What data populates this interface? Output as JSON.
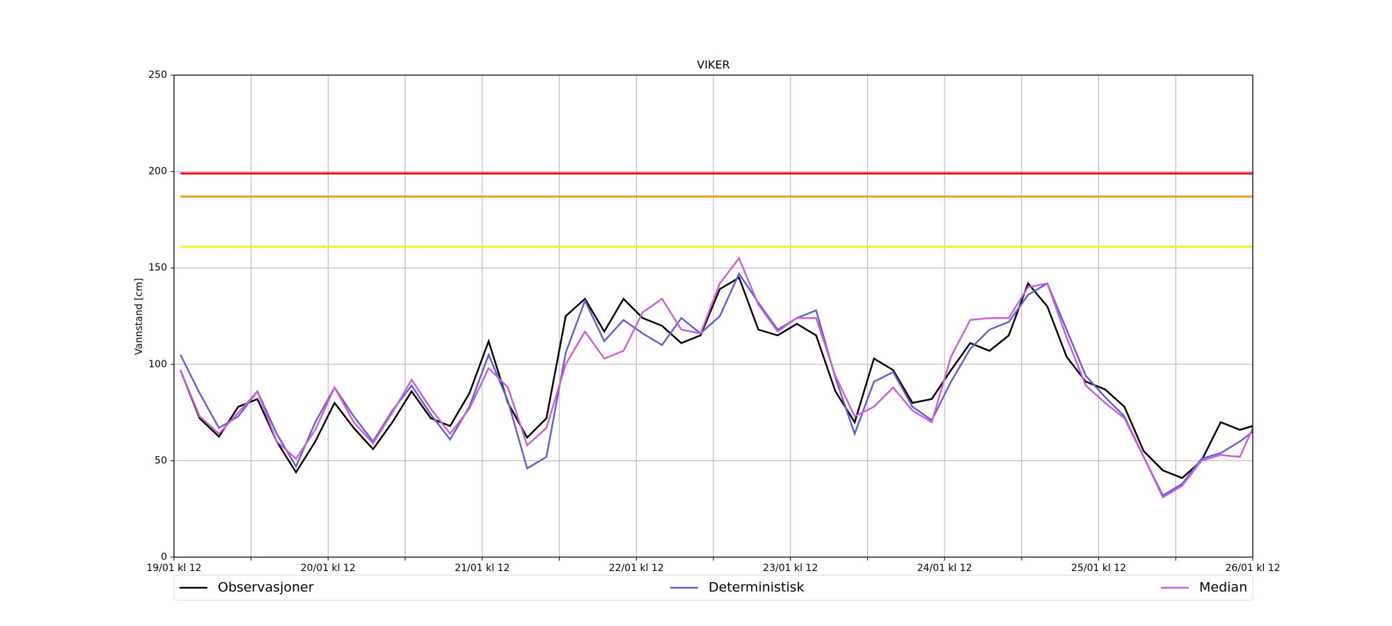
{
  "chart_data": {
    "type": "line",
    "title": "VIKER",
    "y_label": "Vannstand [cm]",
    "x": [
      1,
      4,
      7,
      10,
      13,
      16,
      19,
      22,
      25,
      28,
      31,
      34,
      37,
      40,
      43,
      46,
      49,
      52,
      55,
      58,
      61,
      64,
      67,
      70,
      73,
      76,
      79,
      82,
      85,
      88,
      91,
      94,
      97,
      100,
      103,
      106,
      109,
      112,
      115,
      118,
      121,
      124,
      127,
      130,
      133,
      136,
      139,
      142,
      145,
      148,
      151,
      154,
      157,
      160,
      163,
      166,
      168
    ],
    "series": [
      {
        "name": "Observasjoner",
        "color": "#000000",
        "values": [
          97,
          72,
          62.5,
          78,
          82,
          60,
          44,
          60,
          80,
          67,
          56,
          70,
          86,
          72,
          68,
          85,
          112,
          80,
          62,
          72,
          125,
          134,
          117,
          134,
          124,
          120,
          111,
          115,
          139,
          145,
          118,
          115,
          121,
          115,
          86,
          70,
          103,
          97,
          80,
          82,
          97,
          111,
          107,
          115,
          142,
          130,
          104,
          91,
          87,
          78,
          55,
          45,
          41,
          50,
          70,
          66,
          68
        ]
      },
      {
        "name": "Deterministisk",
        "color": "#6060d6",
        "values": [
          105,
          85,
          67,
          73,
          86,
          64,
          47,
          70,
          88,
          73,
          60,
          76,
          89,
          74,
          61,
          78,
          105,
          81,
          46,
          52,
          106,
          133,
          112,
          123,
          116,
          110,
          124,
          116,
          125,
          147,
          132,
          118,
          124,
          128,
          93,
          64,
          91,
          96,
          78,
          71,
          91,
          108,
          118,
          122,
          136,
          142,
          118,
          94,
          83,
          73,
          52,
          32,
          38,
          51,
          54,
          60,
          65
        ]
      },
      {
        "name": "Median",
        "color": "#cc5fd6",
        "values": [
          97,
          73,
          64,
          75,
          86,
          60,
          51,
          66,
          88,
          70,
          59,
          75,
          92,
          77,
          64,
          77,
          98,
          88,
          58,
          67,
          100,
          117,
          103,
          107,
          127,
          134,
          118,
          116,
          142,
          155,
          131,
          117,
          124,
          124,
          94,
          73,
          78,
          88,
          76,
          70,
          104,
          123,
          124,
          124,
          140,
          142,
          114,
          89,
          80,
          72,
          52,
          31,
          37,
          50,
          53,
          52,
          67
        ]
      }
    ],
    "thresholds": [
      {
        "value": 199,
        "color": "#e0141e"
      },
      {
        "value": 187,
        "color": "#f0a020"
      },
      {
        "value": 161,
        "color": "#f2f21a"
      }
    ],
    "xlim": [
      0,
      168
    ],
    "xticks": [
      {
        "value": 0,
        "label": "19/01 kl 12"
      },
      {
        "value": 24,
        "label": "20/01 kl 12"
      },
      {
        "value": 48,
        "label": "21/01 kl 12"
      },
      {
        "value": 72,
        "label": "22/01 kl 12"
      },
      {
        "value": 96,
        "label": "23/01 kl 12"
      },
      {
        "value": 120,
        "label": "24/01 kl 12"
      },
      {
        "value": 144,
        "label": "25/01 kl 12"
      },
      {
        "value": 168,
        "label": "26/01 kl 12"
      }
    ],
    "xticks_minor": [
      12,
      36,
      60,
      84,
      108,
      132,
      156
    ],
    "ylim": [
      0,
      250
    ],
    "yticks": [
      0,
      50,
      100,
      150,
      200,
      250
    ],
    "grid": true
  }
}
